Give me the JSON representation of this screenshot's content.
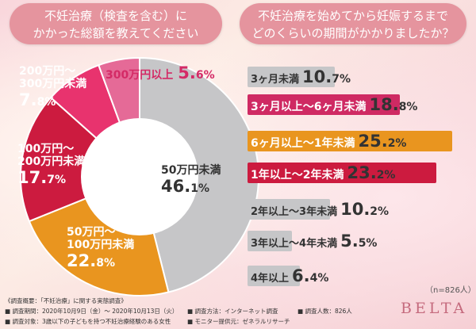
{
  "left_title": {
    "line1": "不妊治療（検査を含む）に",
    "line2": "かかった総額を教えてください"
  },
  "right_title": {
    "line1": "不妊治療を始めてから妊娠するまで",
    "line2": "どのくらいの期間がかかりましたか？"
  },
  "chart_data": [
    {
      "type": "pie",
      "title": "不妊治療（検査を含む）にかかった総額を教えてください",
      "categories": [
        "50万円未満",
        "50万円〜100万円未満",
        "100万円〜200万円未満",
        "200万円〜300万円未満",
        "300万円以上"
      ],
      "values": [
        46.1,
        22.8,
        17.7,
        7.8,
        5.6
      ],
      "unit": "%",
      "colors": [
        "#c6c6c8",
        "#e9951f",
        "#cc1b3f",
        "#e8336e",
        "#e56a97"
      ]
    },
    {
      "type": "bar",
      "orientation": "horizontal",
      "title": "不妊治療を始めてから妊娠するまでどのくらいの期間がかかりましたか？",
      "categories": [
        "3ヶ月未満",
        "3ヶ月以上〜6ヶ月未満",
        "6ヶ月以上〜1年未満",
        "1年以上〜2年未満",
        "2年以上〜3年未満",
        "3年以上〜4年未満",
        "4年以上"
      ],
      "values": [
        10.7,
        18.8,
        25.2,
        23.2,
        10.2,
        5.5,
        6.4
      ],
      "unit": "%",
      "colors": [
        "#c6c6c8",
        "#cf2a63",
        "#e9951f",
        "#cc1b3f",
        "#c6c6c8",
        "#c6c6c8",
        "#c6c6c8"
      ]
    }
  ],
  "pie_labels": [
    {
      "line1": "50万円未満",
      "value": "46.",
      "decimal": "1%"
    },
    {
      "line1": "50万円〜",
      "line2": "100万円未満",
      "value": "22.",
      "decimal": "8%"
    },
    {
      "line1": "100万円〜",
      "line2": "200万円未満",
      "value": "17.",
      "decimal": "7%"
    },
    {
      "line1": "200万円〜",
      "line2": "300万円未満",
      "value": "7.",
      "decimal": "8%"
    },
    {
      "line1": "300万円以上",
      "value": "5.",
      "decimal": "6%"
    }
  ],
  "bar_labels": [
    {
      "label": "3ヶ月未満",
      "value": "10.",
      "decimal": "7%"
    },
    {
      "label": "3ヶ月以上〜6ヶ月未満",
      "value": "18.",
      "decimal": "8%"
    },
    {
      "label": "6ヶ月以上〜1年未満",
      "value": "25.",
      "decimal": "2%"
    },
    {
      "label": "1年以上〜2年未満",
      "value": "23.",
      "decimal": "2%"
    },
    {
      "label": "2年以上〜3年未満",
      "value": "10.",
      "decimal": "2%"
    },
    {
      "label": "3年以上〜4年未満",
      "value": "5.",
      "decimal": "5%"
    },
    {
      "label": "4年以上",
      "value": "6.",
      "decimal": "4%"
    }
  ],
  "sample_size": "（n=826人）",
  "brand": "BELTA",
  "footnote": {
    "overview": "《調査概要：「不妊治療」に関する実態調査》",
    "period": "■ 調査期間：2020年10月9日（金）〜 2020年10月13日（火）",
    "method": "■ 調査方法：インターネット調査",
    "count": "■ 調査人数：826人",
    "target": "■ 調査対象：3歳以下の子どもを持つ不妊治療経験のある女性",
    "provider": "■ モニター提供元：ゼネラルリサーチ"
  }
}
